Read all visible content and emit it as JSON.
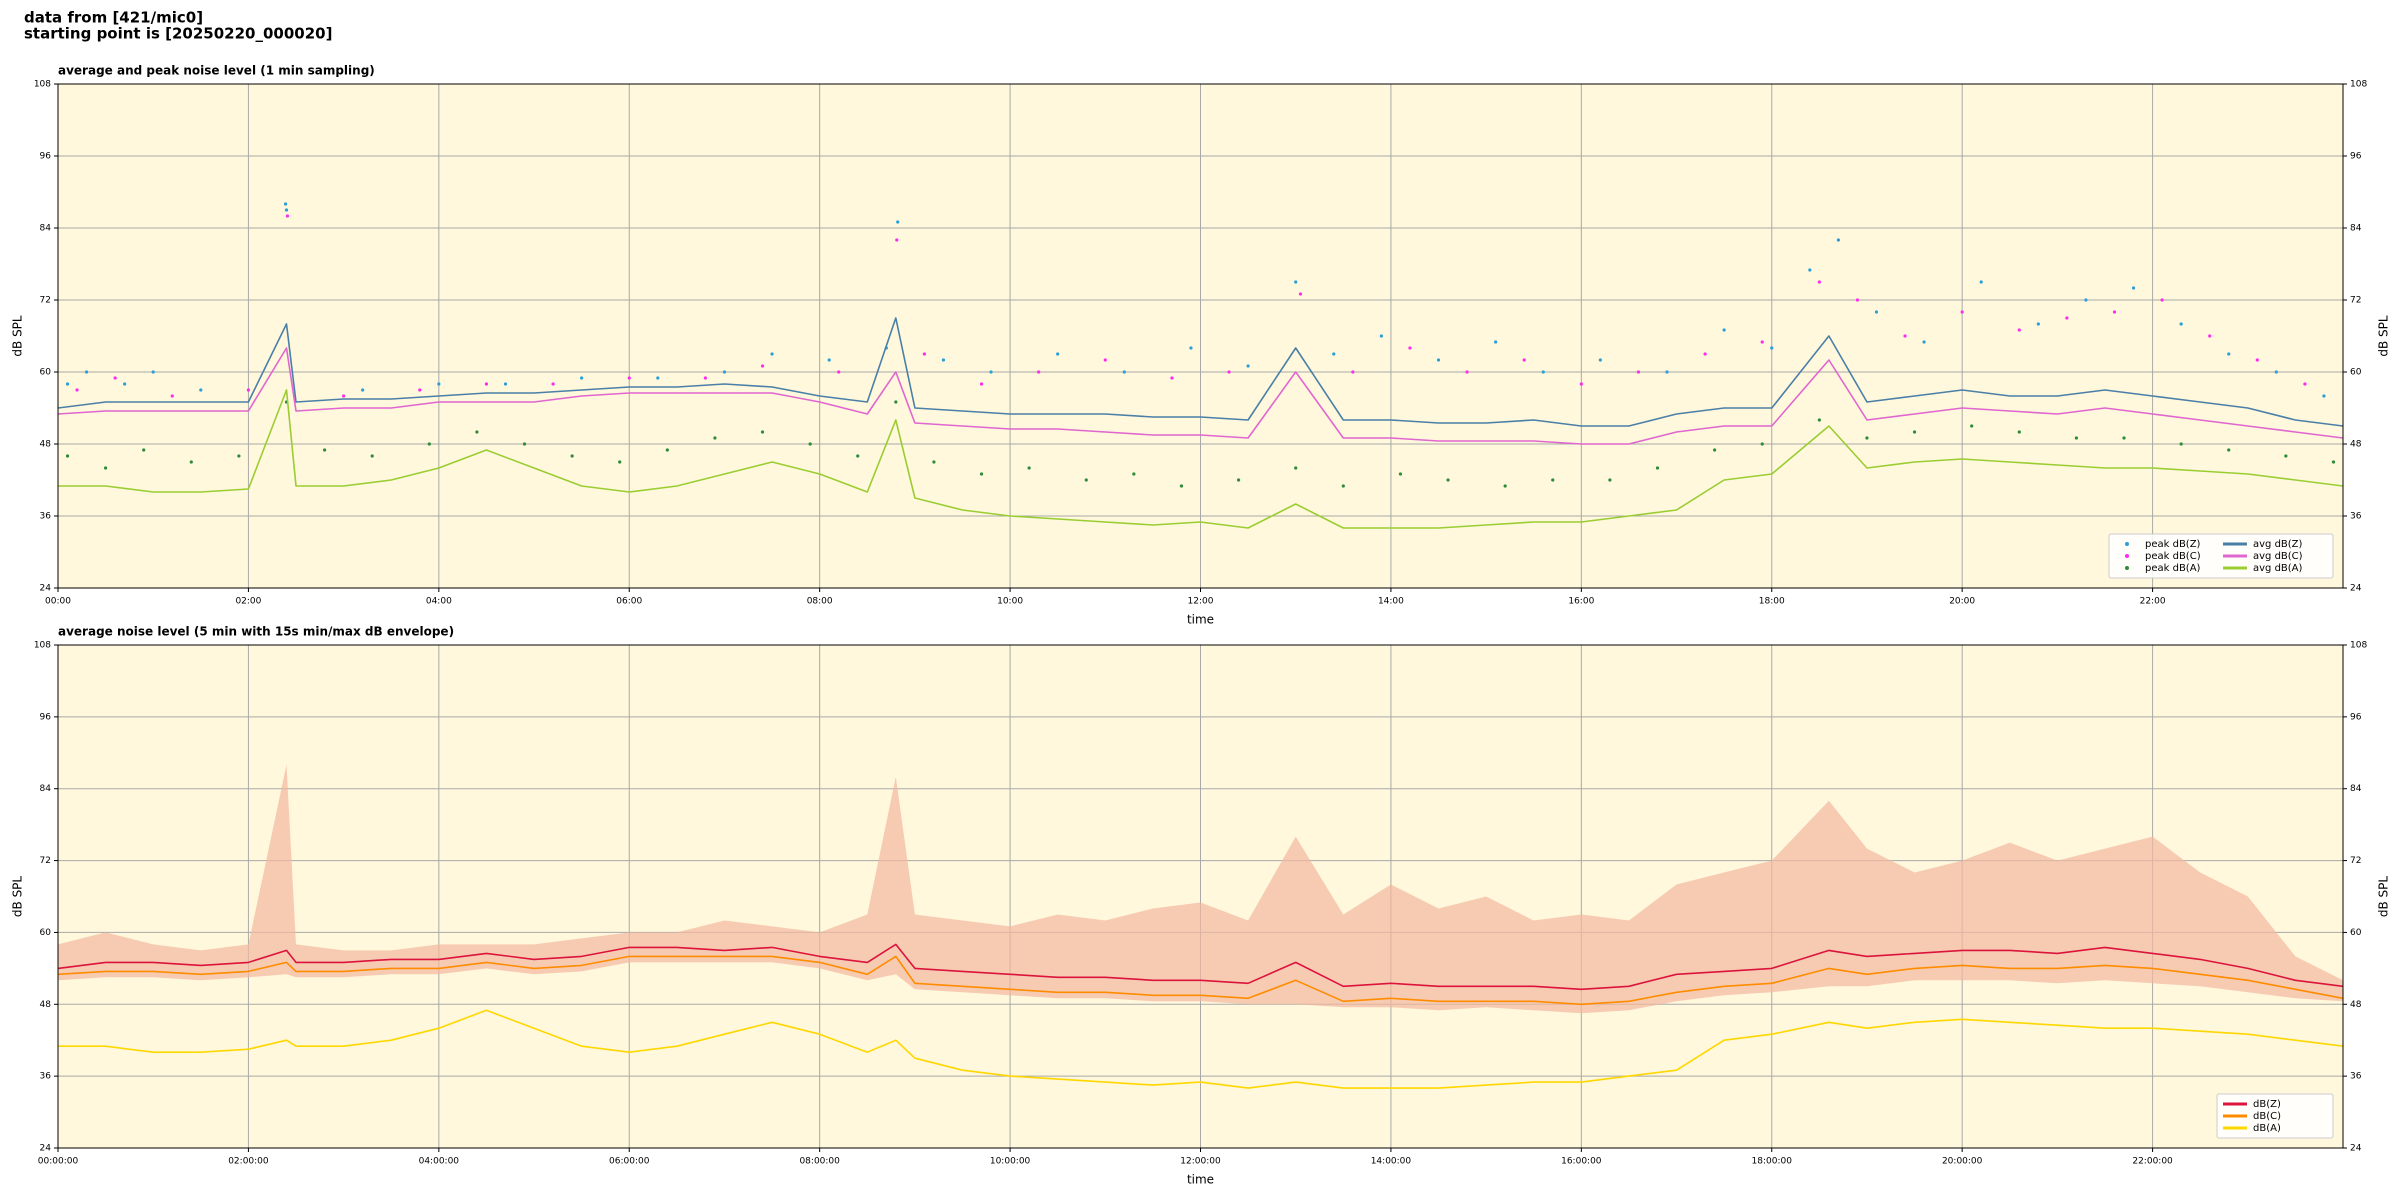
{
  "header": {
    "line1": "data from [421/mic0]",
    "line2": "starting point is [20250220_000020]"
  },
  "chart_data": [
    {
      "type": "line",
      "title": "average and peak noise level (1 min sampling)",
      "x_label": "time",
      "y_label": "dB SPL",
      "background": "#fff8dc",
      "grid": true,
      "legend": "lower right",
      "legend_columns": 2,
      "xlim": [
        0,
        24
      ],
      "ylim": [
        24,
        108
      ],
      "xticks": [
        {
          "value": 0,
          "label": "00:00"
        },
        {
          "value": 2,
          "label": "02:00"
        },
        {
          "value": 4,
          "label": "04:00"
        },
        {
          "value": 6,
          "label": "06:00"
        },
        {
          "value": 8,
          "label": "08:00"
        },
        {
          "value": 10,
          "label": "10:00"
        },
        {
          "value": 12,
          "label": "12:00"
        },
        {
          "value": 14,
          "label": "14:00"
        },
        {
          "value": 16,
          "label": "16:00"
        },
        {
          "value": 18,
          "label": "18:00"
        },
        {
          "value": 20,
          "label": "20:00"
        },
        {
          "value": 22,
          "label": "22:00"
        }
      ],
      "yticks": [
        24,
        36,
        48,
        60,
        72,
        84,
        96,
        108
      ],
      "x": [
        0,
        0.5,
        1,
        1.5,
        2,
        2.4,
        2.5,
        3,
        3.5,
        4,
        4.5,
        5,
        5.5,
        6,
        6.5,
        7,
        7.5,
        8,
        8.5,
        8.8,
        9,
        9.5,
        10,
        10.5,
        11,
        11.5,
        12,
        12.5,
        13,
        13.5,
        14,
        14.5,
        15,
        15.5,
        16,
        16.5,
        17,
        17.5,
        18,
        18.6,
        19,
        19.5,
        20,
        20.5,
        21,
        21.5,
        22,
        22.5,
        23,
        23.5,
        24
      ],
      "series": [
        {
          "name": "peak dB(Z)",
          "type": "scatter",
          "color": "#2a9fd8",
          "x": [
            0.1,
            0.3,
            0.7,
            1.0,
            1.5,
            2.39,
            2.4,
            3.2,
            4.0,
            4.7,
            5.5,
            6.3,
            7.0,
            7.5,
            8.1,
            8.7,
            8.82,
            9.3,
            9.8,
            10.5,
            11.2,
            11.9,
            12.5,
            13.0,
            13.4,
            13.9,
            14.5,
            15.1,
            15.6,
            16.2,
            16.9,
            17.5,
            18.0,
            18.4,
            18.7,
            19.1,
            19.6,
            20.2,
            20.8,
            21.3,
            21.8,
            22.3,
            22.8,
            23.3,
            23.8
          ],
          "values": [
            58,
            60,
            58,
            60,
            57,
            88,
            87,
            57,
            58,
            58,
            59,
            59,
            60,
            63,
            62,
            64,
            85,
            62,
            60,
            63,
            60,
            64,
            61,
            75,
            63,
            66,
            62,
            65,
            60,
            62,
            60,
            67,
            64,
            77,
            82,
            70,
            65,
            75,
            68,
            72,
            74,
            68,
            63,
            60,
            56
          ]
        },
        {
          "name": "peak dB(C)",
          "type": "scatter",
          "color": "#ff2cf0",
          "x": [
            0.2,
            0.6,
            1.2,
            2.0,
            2.41,
            3.0,
            3.8,
            4.5,
            5.2,
            6.0,
            6.8,
            7.4,
            8.2,
            8.81,
            9.1,
            9.7,
            10.3,
            11.0,
            11.7,
            12.3,
            13.05,
            13.6,
            14.2,
            14.8,
            15.4,
            16.0,
            16.6,
            17.3,
            17.9,
            18.5,
            18.9,
            19.4,
            20.0,
            20.6,
            21.1,
            21.6,
            22.1,
            22.6,
            23.1,
            23.6
          ],
          "values": [
            57,
            59,
            56,
            57,
            86,
            56,
            57,
            58,
            58,
            59,
            59,
            61,
            60,
            82,
            63,
            58,
            60,
            62,
            59,
            60,
            73,
            60,
            64,
            60,
            62,
            58,
            60,
            63,
            65,
            75,
            72,
            66,
            70,
            67,
            69,
            70,
            72,
            66,
            62,
            58
          ]
        },
        {
          "name": "peak dB(A)",
          "type": "scatter",
          "color": "#2e8b3a",
          "x": [
            0.1,
            0.5,
            0.9,
            1.4,
            1.9,
            2.4,
            2.8,
            3.3,
            3.9,
            4.4,
            4.9,
            5.4,
            5.9,
            6.4,
            6.9,
            7.4,
            7.9,
            8.4,
            8.8,
            9.2,
            9.7,
            10.2,
            10.8,
            11.3,
            11.8,
            12.4,
            13.0,
            13.5,
            14.1,
            14.6,
            15.2,
            15.7,
            16.3,
            16.8,
            17.4,
            17.9,
            18.5,
            19.0,
            19.5,
            20.1,
            20.6,
            21.2,
            21.7,
            22.3,
            22.8,
            23.4,
            23.9
          ],
          "values": [
            46,
            44,
            47,
            45,
            46,
            55,
            47,
            46,
            48,
            50,
            48,
            46,
            45,
            47,
            49,
            50,
            48,
            46,
            55,
            45,
            43,
            44,
            42,
            43,
            41,
            42,
            44,
            41,
            43,
            42,
            41,
            42,
            42,
            44,
            47,
            48,
            52,
            49,
            50,
            51,
            50,
            49,
            49,
            48,
            47,
            46,
            45
          ]
        },
        {
          "name": "avg dB(Z)",
          "color": "#4a7fa8",
          "values": [
            54,
            55,
            55,
            55,
            55,
            68,
            55,
            55.5,
            55.5,
            56,
            56.5,
            56.5,
            57,
            57.5,
            57.5,
            58,
            57.5,
            56,
            55,
            69,
            54,
            53.5,
            53,
            53,
            53,
            52.5,
            52.5,
            52,
            64,
            52,
            52,
            51.5,
            51.5,
            52,
            51,
            51,
            53,
            54,
            54,
            66,
            55,
            56,
            57,
            56,
            56,
            57,
            56,
            55,
            54,
            52,
            51
          ]
        },
        {
          "name": "avg dB(C)",
          "color": "#e066d0",
          "values": [
            53,
            53.5,
            53.5,
            53.5,
            53.5,
            64,
            53.5,
            54,
            54,
            55,
            55,
            55,
            56,
            56.5,
            56.5,
            56.5,
            56.5,
            55,
            53,
            60,
            51.5,
            51,
            50.5,
            50.5,
            50,
            49.5,
            49.5,
            49,
            60,
            49,
            49,
            48.5,
            48.5,
            48.5,
            48,
            48,
            50,
            51,
            51,
            62,
            52,
            53,
            54,
            53.5,
            53,
            54,
            53,
            52,
            51,
            50,
            49
          ]
        },
        {
          "name": "avg dB(A)",
          "color": "#9acd32",
          "values": [
            41,
            41,
            40,
            40,
            40.5,
            57,
            41,
            41,
            42,
            44,
            47,
            44,
            41,
            40,
            41,
            43,
            45,
            43,
            40,
            52,
            39,
            37,
            36,
            35.5,
            35,
            34.5,
            35,
            34,
            38,
            34,
            34,
            34,
            34.5,
            35,
            35,
            36,
            37,
            42,
            43,
            51,
            44,
            45,
            45.5,
            45,
            44.5,
            44,
            44,
            43.5,
            43,
            42,
            41
          ]
        }
      ]
    },
    {
      "type": "line",
      "title": "average noise level (5 min with 15s min/max dB envelope)",
      "x_label": "time",
      "y_label": "dB SPL",
      "background": "#fff8dc",
      "grid": true,
      "legend": "lower right",
      "legend_columns": 1,
      "xlim": [
        0,
        24
      ],
      "ylim": [
        24,
        108
      ],
      "xticks": [
        {
          "value": 0,
          "label": "00:00:00"
        },
        {
          "value": 2,
          "label": "02:00:00"
        },
        {
          "value": 4,
          "label": "04:00:00"
        },
        {
          "value": 6,
          "label": "06:00:00"
        },
        {
          "value": 8,
          "label": "08:00:00"
        },
        {
          "value": 10,
          "label": "10:00:00"
        },
        {
          "value": 12,
          "label": "12:00:00"
        },
        {
          "value": 14,
          "label": "14:00:00"
        },
        {
          "value": 16,
          "label": "16:00:00"
        },
        {
          "value": 18,
          "label": "18:00:00"
        },
        {
          "value": 20,
          "label": "20:00:00"
        },
        {
          "value": 22,
          "label": "22:00:00"
        }
      ],
      "yticks": [
        24,
        36,
        48,
        60,
        72,
        84,
        96,
        108
      ],
      "x": [
        0,
        0.5,
        1,
        1.5,
        2,
        2.4,
        2.5,
        3,
        3.5,
        4,
        4.5,
        5,
        5.5,
        6,
        6.5,
        7,
        7.5,
        8,
        8.5,
        8.8,
        9,
        9.5,
        10,
        10.5,
        11,
        11.5,
        12,
        12.5,
        13,
        13.5,
        14,
        14.5,
        15,
        15.5,
        16,
        16.5,
        17,
        17.5,
        18,
        18.6,
        19,
        19.5,
        20,
        20.5,
        21,
        21.5,
        22,
        22.5,
        23,
        23.5,
        24
      ],
      "envelope": {
        "color": "#f4b8a0",
        "max": [
          58,
          60,
          58,
          57,
          58,
          88,
          58,
          57,
          57,
          58,
          58,
          58,
          59,
          60,
          60,
          62,
          61,
          60,
          63,
          86,
          63,
          62,
          61,
          63,
          62,
          64,
          65,
          62,
          76,
          63,
          68,
          64,
          66,
          62,
          63,
          62,
          68,
          70,
          72,
          82,
          74,
          70,
          72,
          75,
          72,
          74,
          76,
          70,
          66,
          56,
          52
        ],
        "min": [
          52,
          52.5,
          52.5,
          52,
          52.5,
          53,
          52.5,
          52.5,
          53,
          53,
          54,
          53,
          53.5,
          55,
          55,
          55,
          55,
          54,
          52,
          53,
          50.5,
          50,
          49.5,
          49,
          49,
          48.5,
          48.5,
          48,
          48,
          47.5,
          47.5,
          47,
          47.5,
          47,
          46.5,
          47,
          48.5,
          49.5,
          50,
          51,
          51,
          52,
          52,
          52,
          51.5,
          52,
          51.5,
          51,
          50,
          49,
          48.5
        ]
      },
      "series": [
        {
          "name": "dB(Z)",
          "color": "#dc143c",
          "values": [
            54,
            55,
            55,
            54.5,
            55,
            57,
            55,
            55,
            55.5,
            55.5,
            56.5,
            55.5,
            56,
            57.5,
            57.5,
            57,
            57.5,
            56,
            55,
            58,
            54,
            53.5,
            53,
            52.5,
            52.5,
            52,
            52,
            51.5,
            55,
            51,
            51.5,
            51,
            51,
            51,
            50.5,
            51,
            53,
            53.5,
            54,
            57,
            56,
            56.5,
            57,
            57,
            56.5,
            57.5,
            56.5,
            55.5,
            54,
            52,
            51
          ]
        },
        {
          "name": "dB(C)",
          "color": "#ff8c00",
          "values": [
            53,
            53.5,
            53.5,
            53,
            53.5,
            55,
            53.5,
            53.5,
            54,
            54,
            55,
            54,
            54.5,
            56,
            56,
            56,
            56,
            55,
            53,
            56,
            51.5,
            51,
            50.5,
            50,
            50,
            49.5,
            49.5,
            49,
            52,
            48.5,
            49,
            48.5,
            48.5,
            48.5,
            48,
            48.5,
            50,
            51,
            51.5,
            54,
            53,
            54,
            54.5,
            54,
            54,
            54.5,
            54,
            53,
            52,
            50.5,
            49
          ]
        },
        {
          "name": "dB(A)",
          "color": "#ffd700",
          "values": [
            41,
            41,
            40,
            40,
            40.5,
            42,
            41,
            41,
            42,
            44,
            47,
            44,
            41,
            40,
            41,
            43,
            45,
            43,
            40,
            42,
            39,
            37,
            36,
            35.5,
            35,
            34.5,
            35,
            34,
            35,
            34,
            34,
            34,
            34.5,
            35,
            35,
            36,
            37,
            42,
            43,
            45,
            44,
            45,
            45.5,
            45,
            44.5,
            44,
            44,
            43.5,
            43,
            42,
            41
          ]
        }
      ]
    }
  ]
}
